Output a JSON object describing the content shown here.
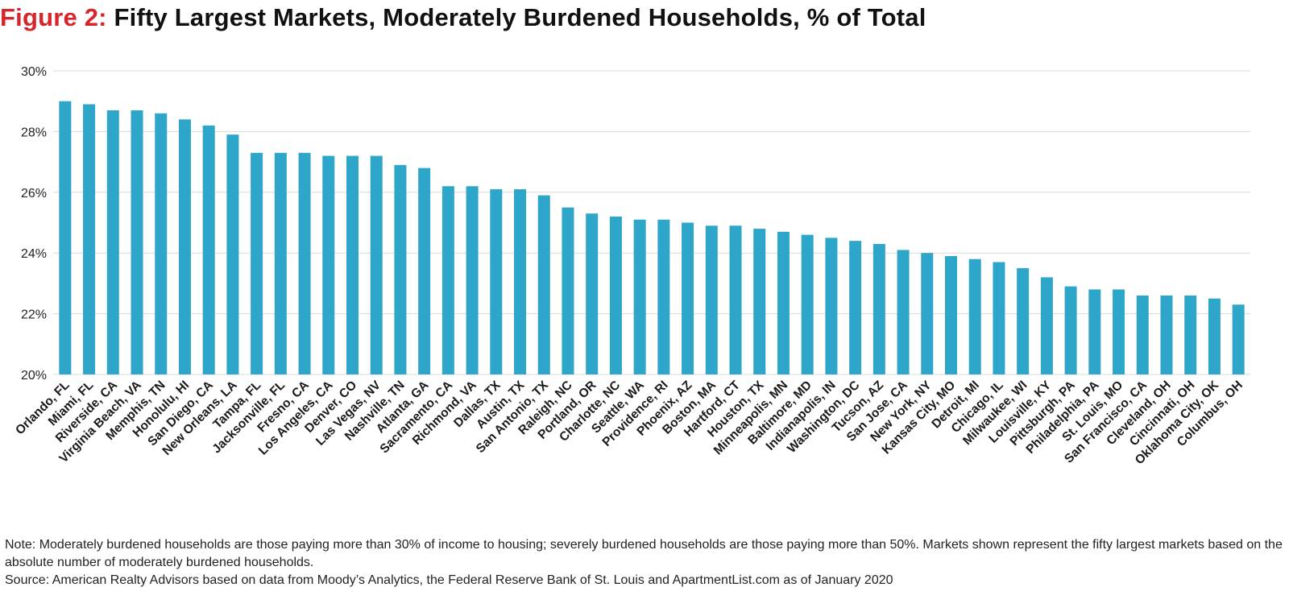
{
  "title": {
    "figure_label": "Figure 2:",
    "text": "Fifty Largest Markets, Moderately Burdened Households, % of Total"
  },
  "colors": {
    "bar": "#2ea6c9",
    "figure_label": "#d7262b",
    "grid": "#d9d9d9"
  },
  "chart_data": {
    "type": "bar",
    "title": "Fifty Largest Markets, Moderately Burdened Households, % of Total",
    "xlabel": "",
    "ylabel": "",
    "ylim": [
      20,
      30
    ],
    "yticks": [
      "20%",
      "22%",
      "24%",
      "26%",
      "28%",
      "30%"
    ],
    "grid": true,
    "categories": [
      "Orlando, FL",
      "Miami, FL",
      "Riverside, CA",
      "Virginia Beach, VA",
      "Memphis, TN",
      "Honolulu, HI",
      "San Diego, CA",
      "New Orleans, LA",
      "Tampa, FL",
      "Jacksonville, FL",
      "Fresno, CA",
      "Los Angeles, CA",
      "Denver, CO",
      "Las Vegas, NV",
      "Nashville, TN",
      "Atlanta, GA",
      "Sacramento, CA",
      "Richmond, VA",
      "Dallas, TX",
      "Austin, TX",
      "San Antonio, TX",
      "Raleigh, NC",
      "Portland, OR",
      "Charlotte, NC",
      "Seattle, WA",
      "Providence, RI",
      "Phoenix, AZ",
      "Boston, MA",
      "Hartford, CT",
      "Houston, TX",
      "Minneapolis, MN",
      "Baltimore, MD",
      "Indianapolis, IN",
      "Washington, DC",
      "Tucson, AZ",
      "San Jose, CA",
      "New York, NY",
      "Kansas City, MO",
      "Detroit, MI",
      "Chicago, IL",
      "Milwaukee, WI",
      "Louisville, KY",
      "Pittsburgh, PA",
      "Philadelphia, PA",
      "St. Louis, MO",
      "San Francisco, CA",
      "Cleveland, OH",
      "Cincinnati, OH",
      "Oklahoma City, OK",
      "Columbus, OH"
    ],
    "values": [
      29.0,
      28.9,
      28.7,
      28.7,
      28.6,
      28.4,
      28.2,
      27.9,
      27.3,
      27.3,
      27.3,
      27.2,
      27.2,
      27.2,
      26.9,
      26.8,
      26.2,
      26.2,
      26.1,
      26.1,
      25.9,
      25.5,
      25.3,
      25.2,
      25.1,
      25.1,
      25.0,
      24.9,
      24.9,
      24.8,
      24.7,
      24.6,
      24.5,
      24.4,
      24.3,
      24.1,
      24.0,
      23.9,
      23.8,
      23.7,
      23.5,
      23.2,
      22.9,
      22.8,
      22.8,
      22.6,
      22.6,
      22.6,
      22.5,
      22.3
    ]
  },
  "notes": {
    "note": "Note: Moderately burdened households are those paying more than 30% of income to housing; severely burdened households are those paying more than 50%. Markets shown represent the fifty largest markets based on the absolute number of moderately burdened households.",
    "source": "Source: American Realty Advisors based on data from Moody’s Analytics, the Federal Reserve Bank of St. Louis and ApartmentList.com as of January 2020"
  }
}
